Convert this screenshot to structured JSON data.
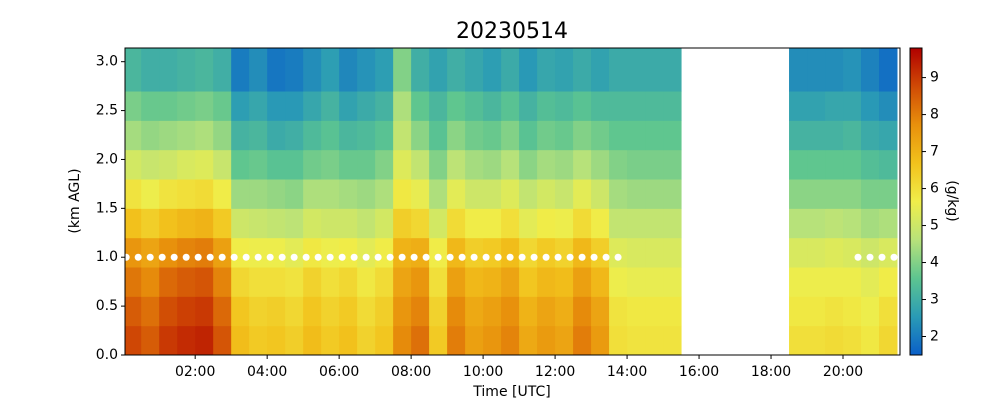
{
  "chart_data": {
    "type": "heatmap",
    "title": "20230514",
    "x_label": "Time [UTC]",
    "y_label": "(km AGL)",
    "colorbar_label": "(g/kg)",
    "x": [
      15,
      45,
      75,
      105,
      135,
      165,
      195,
      225,
      255,
      285,
      315,
      345,
      375,
      405,
      435,
      465,
      495,
      525,
      555,
      585,
      615,
      645,
      675,
      705,
      735,
      765,
      795,
      825,
      855,
      885,
      915,
      945,
      975,
      1005,
      1035,
      1065,
      1095,
      1125,
      1155,
      1185,
      1215,
      1245,
      1275
    ],
    "y": [
      0.15,
      0.45,
      0.75,
      1.05,
      1.35,
      1.65,
      1.95,
      2.25,
      2.55,
      2.85
    ],
    "z": [
      [
        8.8,
        8.5,
        9.0,
        9.2,
        9.3,
        8.6,
        6.8,
        6.5,
        6.6,
        6.4,
        6.8,
        6.5,
        6.7,
        6.3,
        6.6,
        7.8,
        8.2,
        6.5,
        8.0,
        7.4,
        7.6,
        7.9,
        7.2,
        7.5,
        7.3,
        8.0,
        7.5,
        6.0,
        5.9,
        5.9,
        5.9,
        null,
        null,
        null,
        null,
        null,
        null,
        6.0,
        6.0,
        6.1,
        6.0,
        5.8,
        6.2
      ],
      [
        8.5,
        8.2,
        8.7,
        8.9,
        9.0,
        8.3,
        6.6,
        6.3,
        6.4,
        6.2,
        6.6,
        6.3,
        6.5,
        6.1,
        6.4,
        7.6,
        7.9,
        6.3,
        7.8,
        7.2,
        7.4,
        7.7,
        7.0,
        7.3,
        7.1,
        7.8,
        7.3,
        5.9,
        5.8,
        5.8,
        5.8,
        null,
        null,
        null,
        null,
        null,
        null,
        5.8,
        5.8,
        5.9,
        5.8,
        5.6,
        6.0
      ],
      [
        8.1,
        7.8,
        8.3,
        8.5,
        8.6,
        7.9,
        6.2,
        6.0,
        6.0,
        5.9,
        6.3,
        6.0,
        6.2,
        5.8,
        6.1,
        7.3,
        7.6,
        6.0,
        7.4,
        6.9,
        7.0,
        7.3,
        6.6,
        6.9,
        6.8,
        7.4,
        6.9,
        5.6,
        5.5,
        5.5,
        5.5,
        null,
        null,
        null,
        null,
        null,
        null,
        5.6,
        5.6,
        5.6,
        5.6,
        5.4,
        5.7
      ],
      [
        7.6,
        7.3,
        7.7,
        7.9,
        8.0,
        7.4,
        5.7,
        5.6,
        5.6,
        5.4,
        5.8,
        5.6,
        5.7,
        5.4,
        5.7,
        7.0,
        7.1,
        5.7,
        6.9,
        6.4,
        6.5,
        6.8,
        6.2,
        6.5,
        6.3,
        6.9,
        6.4,
        5.3,
        5.2,
        5.2,
        5.2,
        null,
        null,
        null,
        null,
        null,
        null,
        5.2,
        5.2,
        5.3,
        5.2,
        5.0,
        5.2
      ],
      [
        6.7,
        6.4,
        6.7,
        6.9,
        7.0,
        6.5,
        5.0,
        4.9,
        4.8,
        4.7,
        5.1,
        5.0,
        5.0,
        4.8,
        5.1,
        6.4,
        6.2,
        5.1,
        6.1,
        5.7,
        5.7,
        6.0,
        5.4,
        5.7,
        5.6,
        6.1,
        5.7,
        4.8,
        4.8,
        4.8,
        4.8,
        null,
        null,
        null,
        null,
        null,
        null,
        4.6,
        4.6,
        4.7,
        4.6,
        4.4,
        4.5
      ],
      [
        5.9,
        5.6,
        5.9,
        6.0,
        6.1,
        5.7,
        4.3,
        4.3,
        4.2,
        4.1,
        4.5,
        4.5,
        4.4,
        4.3,
        4.5,
        5.8,
        5.5,
        4.5,
        5.4,
        5.0,
        5.0,
        5.3,
        4.8,
        5.1,
        4.9,
        5.4,
        5.0,
        4.4,
        4.3,
        4.3,
        4.3,
        null,
        null,
        null,
        null,
        null,
        null,
        4.1,
        4.1,
        4.1,
        4.1,
        3.9,
        3.9
      ],
      [
        5.1,
        4.9,
        5.0,
        5.2,
        5.3,
        4.9,
        3.6,
        3.7,
        3.5,
        3.5,
        3.8,
        3.9,
        3.7,
        3.7,
        4.0,
        5.3,
        4.8,
        4.0,
        4.7,
        4.4,
        4.3,
        4.6,
        4.1,
        4.4,
        4.3,
        4.6,
        4.3,
        4.0,
        3.9,
        3.9,
        3.9,
        null,
        null,
        null,
        null,
        null,
        null,
        3.6,
        3.6,
        3.6,
        3.6,
        3.4,
        3.3
      ],
      [
        4.4,
        4.2,
        4.3,
        4.4,
        4.5,
        4.2,
        3.1,
        3.2,
        2.9,
        3.0,
        3.3,
        3.5,
        3.2,
        3.3,
        3.5,
        4.8,
        4.1,
        3.5,
        4.1,
        3.8,
        3.7,
        4.0,
        3.5,
        3.8,
        3.7,
        4.0,
        3.8,
        3.6,
        3.6,
        3.6,
        3.6,
        null,
        null,
        null,
        null,
        null,
        null,
        3.1,
        3.1,
        3.1,
        3.2,
        2.9,
        2.8
      ],
      [
        3.9,
        3.7,
        3.7,
        3.8,
        3.9,
        3.7,
        2.6,
        2.8,
        2.5,
        2.5,
        2.8,
        3.1,
        2.7,
        2.9,
        3.1,
        4.5,
        3.6,
        3.2,
        3.6,
        3.4,
        3.2,
        3.5,
        3.1,
        3.4,
        3.3,
        3.5,
        3.3,
        3.3,
        3.3,
        3.3,
        3.3,
        null,
        null,
        null,
        null,
        null,
        null,
        2.7,
        2.7,
        2.8,
        2.8,
        2.5,
        2.3
      ],
      [
        3.2,
        3.0,
        3.0,
        3.1,
        3.2,
        3.0,
        2.0,
        2.3,
        1.9,
        2.0,
        2.3,
        2.6,
        2.2,
        2.4,
        2.6,
        4.0,
        3.0,
        2.7,
        3.0,
        2.8,
        2.6,
        2.9,
        2.5,
        2.8,
        2.7,
        2.9,
        2.7,
        2.9,
        2.9,
        2.9,
        2.9,
        null,
        null,
        null,
        null,
        null,
        null,
        2.3,
        2.3,
        2.3,
        2.4,
        2.1,
        1.8
      ]
    ],
    "xlim": [
      3,
      1295
    ],
    "ylim": [
      0,
      3.14
    ],
    "xticks": [
      {
        "value": 120,
        "label": "02:00"
      },
      {
        "value": 240,
        "label": "04:00"
      },
      {
        "value": 360,
        "label": "06:00"
      },
      {
        "value": 480,
        "label": "08:00"
      },
      {
        "value": 600,
        "label": "10:00"
      },
      {
        "value": 720,
        "label": "12:00"
      },
      {
        "value": 840,
        "label": "14:00"
      },
      {
        "value": 960,
        "label": "16:00"
      },
      {
        "value": 1080,
        "label": "18:00"
      },
      {
        "value": 1200,
        "label": "20:00"
      }
    ],
    "yticks": [
      {
        "value": 0,
        "label": "0.0"
      },
      0.5,
      {
        "value": 1,
        "label": "1.0"
      },
      1.5,
      {
        "value": 2,
        "label": "2.0"
      },
      2.5,
      {
        "value": 3,
        "label": "3.0"
      }
    ],
    "clim": [
      1.5,
      9.8
    ],
    "cticks": [
      2,
      3,
      4,
      5,
      6,
      7,
      8,
      9
    ],
    "colorscale": [
      "#0a5fc8",
      "#2a9bb5",
      "#5dc590",
      "#b8e27a",
      "#f0ee4a",
      "#f2c21c",
      "#e8900c",
      "#d04a05",
      "#b00000"
    ],
    "markers": {
      "x": [
        5,
        25,
        45,
        65,
        85,
        105,
        125,
        145,
        165,
        185,
        205,
        225,
        245,
        265,
        285,
        305,
        325,
        345,
        365,
        385,
        405,
        425,
        445,
        465,
        485,
        505,
        525,
        545,
        565,
        585,
        605,
        625,
        645,
        665,
        685,
        705,
        725,
        745,
        765,
        785,
        805,
        825,
        1225,
        1245,
        1265,
        1285
      ],
      "values": [
        1,
        1,
        1,
        1,
        1,
        1,
        1,
        1,
        1,
        1,
        1,
        1,
        1,
        1,
        1,
        1,
        1,
        1,
        1,
        1,
        1,
        1,
        1,
        1,
        1,
        1,
        1,
        1,
        1,
        1,
        1,
        1,
        1,
        1,
        1,
        1,
        1,
        1,
        1,
        1,
        1,
        1,
        1,
        1,
        1,
        1
      ],
      "color": "#ffffff"
    }
  }
}
